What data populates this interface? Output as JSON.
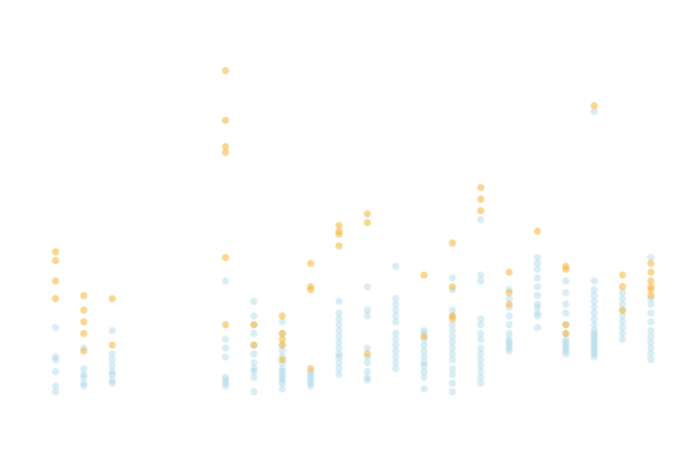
{
  "chart_data": {
    "type": "scatter",
    "title": "",
    "xlabel": "",
    "ylabel": "",
    "xlim": [
      0,
      22
    ],
    "ylim": [
      0,
      130
    ],
    "grid": false,
    "legend": "none",
    "colors": {
      "blue": "#aad7e6",
      "orange": "#f7b53b"
    },
    "series": [
      {
        "color_key": "blue",
        "points": [
          [
            1,
            2
          ],
          [
            1,
            4
          ],
          [
            1,
            9
          ],
          [
            1,
            13
          ],
          [
            1,
            14
          ],
          [
            1,
            24
          ],
          [
            2,
            4
          ],
          [
            2,
            5
          ],
          [
            2,
            7
          ],
          [
            2,
            8
          ],
          [
            2,
            10
          ],
          [
            2,
            17
          ],
          [
            3,
            5
          ],
          [
            3,
            6
          ],
          [
            3,
            8
          ],
          [
            3,
            9
          ],
          [
            3,
            11
          ],
          [
            3,
            13
          ],
          [
            3,
            15
          ],
          [
            3,
            23
          ],
          [
            7,
            4
          ],
          [
            7,
            5
          ],
          [
            7,
            6
          ],
          [
            7,
            7
          ],
          [
            7,
            14
          ],
          [
            7,
            17
          ],
          [
            7,
            20
          ],
          [
            7,
            40
          ],
          [
            8,
            2
          ],
          [
            8,
            7
          ],
          [
            8,
            9
          ],
          [
            8,
            10
          ],
          [
            8,
            12
          ],
          [
            8,
            15
          ],
          [
            8,
            18
          ],
          [
            8,
            22
          ],
          [
            8,
            25
          ],
          [
            8,
            28
          ],
          [
            8,
            33
          ],
          [
            9,
            3
          ],
          [
            9,
            5
          ],
          [
            9,
            6
          ],
          [
            9,
            7
          ],
          [
            9,
            8
          ],
          [
            9,
            9
          ],
          [
            9,
            10
          ],
          [
            9,
            12
          ],
          [
            9,
            14
          ],
          [
            9,
            16
          ],
          [
            9,
            18
          ],
          [
            9,
            22
          ],
          [
            9,
            26
          ],
          [
            10,
            4
          ],
          [
            10,
            5
          ],
          [
            10,
            6
          ],
          [
            10,
            7
          ],
          [
            10,
            8
          ],
          [
            10,
            9
          ],
          [
            11,
            8
          ],
          [
            11,
            10
          ],
          [
            11,
            12
          ],
          [
            11,
            14
          ],
          [
            11,
            15
          ],
          [
            11,
            17
          ],
          [
            11,
            19
          ],
          [
            11,
            21
          ],
          [
            11,
            23
          ],
          [
            11,
            25
          ],
          [
            11,
            27
          ],
          [
            11,
            29
          ],
          [
            11,
            33
          ],
          [
            12,
            6
          ],
          [
            12,
            7
          ],
          [
            12,
            9
          ],
          [
            12,
            12
          ],
          [
            12,
            14
          ],
          [
            12,
            17
          ],
          [
            12,
            28
          ],
          [
            12,
            30
          ],
          [
            12,
            38
          ],
          [
            13,
            10
          ],
          [
            13,
            12
          ],
          [
            13,
            14
          ],
          [
            13,
            16
          ],
          [
            13,
            18
          ],
          [
            13,
            20
          ],
          [
            13,
            22
          ],
          [
            13,
            26
          ],
          [
            13,
            28
          ],
          [
            13,
            30
          ],
          [
            13,
            32
          ],
          [
            13,
            34
          ],
          [
            13,
            45
          ],
          [
            14,
            3
          ],
          [
            14,
            7
          ],
          [
            14,
            9
          ],
          [
            14,
            11
          ],
          [
            14,
            12
          ],
          [
            14,
            14
          ],
          [
            14,
            16
          ],
          [
            14,
            18
          ],
          [
            14,
            20
          ],
          [
            14,
            22
          ],
          [
            14,
            23
          ],
          [
            15,
            2
          ],
          [
            15,
            5
          ],
          [
            15,
            8
          ],
          [
            15,
            10
          ],
          [
            15,
            13
          ],
          [
            15,
            15
          ],
          [
            15,
            17
          ],
          [
            15,
            19
          ],
          [
            15,
            21
          ],
          [
            15,
            23
          ],
          [
            15,
            25
          ],
          [
            15,
            28
          ],
          [
            15,
            30
          ],
          [
            15,
            37
          ],
          [
            15,
            41
          ],
          [
            16,
            5
          ],
          [
            16,
            7
          ],
          [
            16,
            9
          ],
          [
            16,
            11
          ],
          [
            16,
            13
          ],
          [
            16,
            15
          ],
          [
            16,
            17
          ],
          [
            16,
            20
          ],
          [
            16,
            22
          ],
          [
            16,
            25
          ],
          [
            16,
            27
          ],
          [
            16,
            40
          ],
          [
            16,
            42
          ],
          [
            16,
            61
          ],
          [
            17,
            16
          ],
          [
            17,
            17
          ],
          [
            17,
            18
          ],
          [
            17,
            19
          ],
          [
            17,
            20
          ],
          [
            17,
            22
          ],
          [
            17,
            25
          ],
          [
            17,
            28
          ],
          [
            17,
            31
          ],
          [
            17,
            34
          ],
          [
            17,
            37
          ],
          [
            18,
            24
          ],
          [
            18,
            28
          ],
          [
            18,
            29
          ],
          [
            18,
            31
          ],
          [
            18,
            32
          ],
          [
            18,
            35
          ],
          [
            18,
            38
          ],
          [
            18,
            41
          ],
          [
            18,
            44
          ],
          [
            18,
            46
          ],
          [
            18,
            48
          ],
          [
            19,
            15
          ],
          [
            19,
            16
          ],
          [
            19,
            17
          ],
          [
            19,
            18
          ],
          [
            19,
            19
          ],
          [
            19,
            20
          ],
          [
            19,
            22
          ],
          [
            19,
            25
          ],
          [
            19,
            29
          ],
          [
            19,
            32
          ],
          [
            19,
            36
          ],
          [
            19,
            40
          ],
          [
            20,
            14
          ],
          [
            20,
            15
          ],
          [
            20,
            16
          ],
          [
            20,
            17
          ],
          [
            20,
            18
          ],
          [
            20,
            19
          ],
          [
            20,
            20
          ],
          [
            20,
            21
          ],
          [
            20,
            22
          ],
          [
            20,
            23
          ],
          [
            20,
            25
          ],
          [
            20,
            27
          ],
          [
            20,
            29
          ],
          [
            20,
            31
          ],
          [
            20,
            33
          ],
          [
            20,
            35
          ],
          [
            20,
            37
          ],
          [
            20,
            40
          ],
          [
            20,
            98
          ],
          [
            21,
            20
          ],
          [
            21,
            22
          ],
          [
            21,
            24
          ],
          [
            21,
            26
          ],
          [
            21,
            28
          ],
          [
            21,
            30
          ],
          [
            21,
            32
          ],
          [
            21,
            34
          ],
          [
            21,
            36
          ],
          [
            22,
            13
          ],
          [
            22,
            15
          ],
          [
            22,
            17
          ],
          [
            22,
            19
          ],
          [
            22,
            21
          ],
          [
            22,
            23
          ],
          [
            22,
            26
          ],
          [
            22,
            29
          ],
          [
            22,
            32
          ],
          [
            22,
            34
          ],
          [
            22,
            48
          ]
        ]
      },
      {
        "color_key": "orange",
        "points": [
          [
            1,
            34
          ],
          [
            1,
            40
          ],
          [
            1,
            47
          ],
          [
            1,
            50
          ],
          [
            2,
            16
          ],
          [
            2,
            22
          ],
          [
            2,
            26
          ],
          [
            2,
            30
          ],
          [
            2,
            35
          ],
          [
            3,
            18
          ],
          [
            3,
            34
          ],
          [
            7,
            25
          ],
          [
            7,
            48
          ],
          [
            7,
            84
          ],
          [
            7,
            86
          ],
          [
            7,
            95
          ],
          [
            7,
            112
          ],
          [
            8,
            18
          ],
          [
            8,
            25
          ],
          [
            9,
            13
          ],
          [
            9,
            18
          ],
          [
            9,
            20
          ],
          [
            9,
            22
          ],
          [
            9,
            28
          ],
          [
            10,
            10
          ],
          [
            10,
            37
          ],
          [
            10,
            38
          ],
          [
            10,
            46
          ],
          [
            11,
            52
          ],
          [
            11,
            56
          ],
          [
            11,
            57
          ],
          [
            11,
            59
          ],
          [
            12,
            15
          ],
          [
            12,
            60
          ],
          [
            12,
            63
          ],
          [
            14,
            21
          ],
          [
            14,
            42
          ],
          [
            15,
            27
          ],
          [
            15,
            28
          ],
          [
            15,
            38
          ],
          [
            15,
            53
          ],
          [
            16,
            64
          ],
          [
            16,
            68
          ],
          [
            16,
            72
          ],
          [
            17,
            32
          ],
          [
            17,
            36
          ],
          [
            17,
            43
          ],
          [
            18,
            57
          ],
          [
            19,
            22
          ],
          [
            19,
            25
          ],
          [
            19,
            44
          ],
          [
            19,
            45
          ],
          [
            20,
            100
          ],
          [
            21,
            30
          ],
          [
            21,
            38
          ],
          [
            21,
            42
          ],
          [
            22,
            35
          ],
          [
            22,
            37
          ],
          [
            22,
            38
          ],
          [
            22,
            40
          ],
          [
            22,
            43
          ],
          [
            22,
            46
          ]
        ]
      }
    ]
  }
}
